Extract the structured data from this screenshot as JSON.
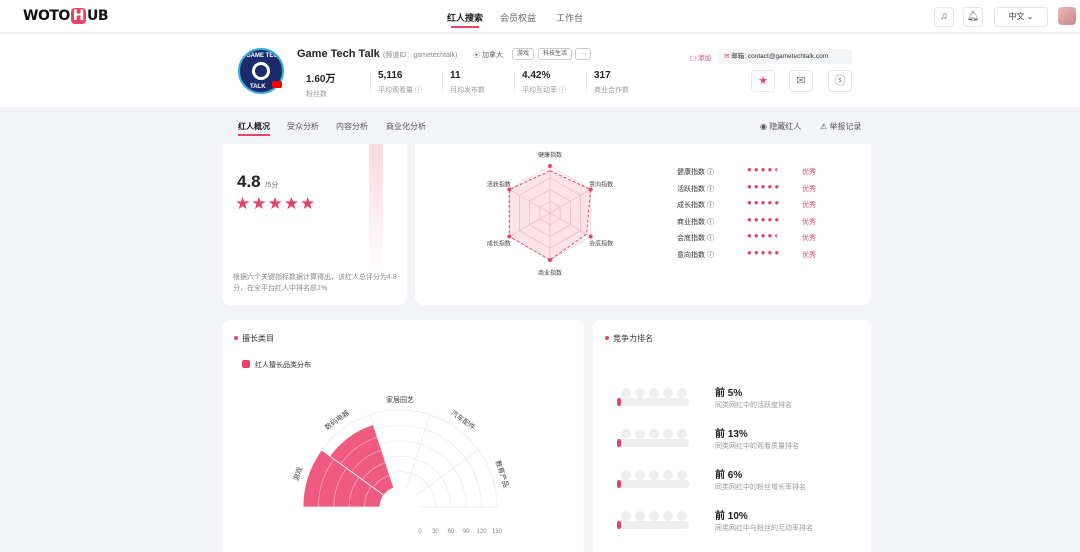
{
  "app": {
    "logo_a": "WOTO",
    "logo_h": "H",
    "logo_b": "UB"
  },
  "nav": [
    {
      "label": "红人搜索"
    },
    {
      "label": "会员权益"
    },
    {
      "label": "工作台"
    }
  ],
  "header": {
    "language": "中文 ⌄"
  },
  "profile": {
    "name": "Game Tech Talk",
    "channel_id": "(频道ID：gametechtalk)",
    "location": "加拿大",
    "tags": [
      "游戏",
      "科技生活",
      "···"
    ],
    "avatar_text_top": "GAME TECH",
    "avatar_text_bottom": "TALK",
    "stats": [
      {
        "value": "1.60万",
        "label": "粉丝数"
      },
      {
        "value": "5,116",
        "label": "平均观看量 ⓘ"
      },
      {
        "value": "11",
        "label": "月均发布数"
      },
      {
        "value": "4.42%",
        "label": "平均互动率 ⓘ"
      },
      {
        "value": "317",
        "label": "商业合作数"
      }
    ],
    "add_label": "添加",
    "email_label": "邮箱:",
    "email": "contact@gametechtalk.com"
  },
  "subtabs": [
    {
      "label": "红人概况"
    },
    {
      "label": "受众分析"
    },
    {
      "label": "内容分析"
    },
    {
      "label": "商业化分析"
    }
  ],
  "tools": {
    "hide": "隐藏红人",
    "report": "举报记录"
  },
  "score_card": {
    "score": "4.8",
    "score_max": "/5分",
    "stars": "★★★★★",
    "desc": "根据六个关键指标数据计算得出，该红人总评分为4.8分，在全平台红人中排名前1%"
  },
  "radar": {
    "axes": [
      "健康指数",
      "意向指数",
      "会底指数",
      "商业指数",
      "成长指数",
      "活跃指数"
    ],
    "metrics": [
      {
        "label": "健康指数 ⓘ",
        "result": "优秀",
        "value": 4.5
      },
      {
        "label": "活跃指数 ⓘ",
        "result": "优秀",
        "value": 5
      },
      {
        "label": "成长指数 ⓘ",
        "result": "优秀",
        "value": 5
      },
      {
        "label": "商业指数 ⓘ",
        "result": "优秀",
        "value": 5
      },
      {
        "label": "会底指数 ⓘ",
        "result": "优秀",
        "value": 4.5
      },
      {
        "label": "意向指数 ⓘ",
        "result": "优秀",
        "value": 5
      }
    ]
  },
  "categories": {
    "title": "擅长类目",
    "legend": "红人擅长品类分布",
    "chart_data": {
      "type": "polar-bar",
      "categories": [
        "游戏",
        "数码电器",
        "家居园艺",
        "汽车配件",
        "教育产品"
      ],
      "values": [
        150,
        130,
        0,
        0,
        0
      ],
      "ticks": [
        "0",
        "30",
        "60",
        "90",
        "120",
        "150"
      ],
      "rmax": 150
    }
  },
  "ranking": {
    "title": "竞争力排名",
    "items": [
      {
        "value": "前 5%",
        "desc": "同类网红中的活跃度排名"
      },
      {
        "value": "前 13%",
        "desc": "同类网红中的观看质量排名"
      },
      {
        "value": "前 6%",
        "desc": "同类网红中的粉丝增长率排名"
      },
      {
        "value": "前 10%",
        "desc": "同类网红中与粉丝的互动率排名"
      }
    ]
  },
  "colors": {
    "accent": "#e6436b"
  }
}
